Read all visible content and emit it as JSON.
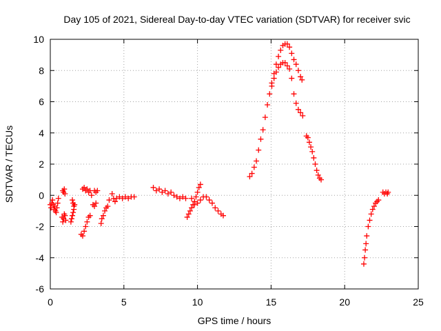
{
  "chart_data": {
    "type": "scatter",
    "title": "Day 105 of 2021, Sidereal Day-to-day VTEC variation (SDTVAR) for receiver svic",
    "xlabel": "GPS time / hours",
    "ylabel": "SDTVAR / TECUs",
    "xlim": [
      0,
      25
    ],
    "ylim": [
      -6,
      10
    ],
    "xticks": [
      0,
      5,
      10,
      15,
      20,
      25
    ],
    "yticks": [
      -6,
      -4,
      -2,
      0,
      2,
      4,
      6,
      8,
      10
    ],
    "grid": true,
    "marker": "+",
    "color": "#ff0000",
    "series": [
      {
        "name": "SDTVAR",
        "points": [
          [
            0.0,
            -0.6
          ],
          [
            0.05,
            -0.8
          ],
          [
            0.1,
            -0.5
          ],
          [
            0.15,
            -0.3
          ],
          [
            0.2,
            -0.6
          ],
          [
            0.25,
            -0.9
          ],
          [
            0.3,
            -0.7
          ],
          [
            0.35,
            -1.0
          ],
          [
            0.4,
            -1.1
          ],
          [
            0.45,
            -0.8
          ],
          [
            0.5,
            -0.5
          ],
          [
            0.55,
            -0.2
          ],
          [
            0.8,
            -1.4
          ],
          [
            0.85,
            -1.7
          ],
          [
            0.9,
            -1.5
          ],
          [
            0.95,
            -1.2
          ],
          [
            1.0,
            -1.3
          ],
          [
            1.05,
            -1.6
          ],
          [
            0.85,
            0.3
          ],
          [
            0.9,
            0.2
          ],
          [
            0.95,
            0.4
          ],
          [
            1.0,
            0.1
          ],
          [
            1.4,
            -1.7
          ],
          [
            1.45,
            -1.5
          ],
          [
            1.5,
            -1.3
          ],
          [
            1.55,
            -1.1
          ],
          [
            1.6,
            -0.9
          ],
          [
            1.5,
            -0.3
          ],
          [
            1.55,
            -0.5
          ],
          [
            1.6,
            -0.7
          ],
          [
            1.65,
            -0.6
          ],
          [
            2.1,
            -2.5
          ],
          [
            2.2,
            -2.6
          ],
          [
            2.3,
            -2.3
          ],
          [
            2.4,
            -2.0
          ],
          [
            2.5,
            -1.7
          ],
          [
            2.6,
            -1.4
          ],
          [
            2.7,
            -1.3
          ],
          [
            2.2,
            0.4
          ],
          [
            2.3,
            0.5
          ],
          [
            2.4,
            0.3
          ],
          [
            2.5,
            0.4
          ],
          [
            2.6,
            0.2
          ],
          [
            2.7,
            0.3
          ],
          [
            2.8,
            0.0
          ],
          [
            2.9,
            -0.6
          ],
          [
            3.0,
            -0.7
          ],
          [
            3.1,
            -0.5
          ],
          [
            3.0,
            0.3
          ],
          [
            3.1,
            0.2
          ],
          [
            3.2,
            0.3
          ],
          [
            3.45,
            -1.8
          ],
          [
            3.5,
            -1.5
          ],
          [
            3.6,
            -1.3
          ],
          [
            3.7,
            -1.0
          ],
          [
            3.8,
            -0.8
          ],
          [
            3.9,
            -0.7
          ],
          [
            4.0,
            -0.3
          ],
          [
            4.2,
            0.1
          ],
          [
            4.3,
            -0.2
          ],
          [
            4.4,
            -0.4
          ],
          [
            4.5,
            -0.2
          ],
          [
            4.7,
            -0.1
          ],
          [
            4.9,
            -0.2
          ],
          [
            5.1,
            -0.1
          ],
          [
            5.3,
            -0.2
          ],
          [
            5.5,
            -0.1
          ],
          [
            5.7,
            -0.1
          ],
          [
            7.0,
            0.5
          ],
          [
            7.2,
            0.3
          ],
          [
            7.4,
            0.4
          ],
          [
            7.6,
            0.2
          ],
          [
            7.8,
            0.3
          ],
          [
            8.0,
            0.1
          ],
          [
            8.2,
            0.2
          ],
          [
            8.4,
            0.0
          ],
          [
            8.6,
            -0.1
          ],
          [
            8.8,
            -0.2
          ],
          [
            9.0,
            -0.1
          ],
          [
            9.2,
            -0.2
          ],
          [
            9.3,
            -1.4
          ],
          [
            9.4,
            -1.2
          ],
          [
            9.5,
            -1.0
          ],
          [
            9.6,
            -0.8
          ],
          [
            9.7,
            -0.6
          ],
          [
            9.8,
            -0.4
          ],
          [
            9.9,
            -0.1
          ],
          [
            10.0,
            0.2
          ],
          [
            10.1,
            0.5
          ],
          [
            10.2,
            0.7
          ],
          [
            9.6,
            -0.2
          ],
          [
            9.8,
            -0.6
          ],
          [
            10.0,
            -0.5
          ],
          [
            10.2,
            -0.3
          ],
          [
            10.4,
            -0.1
          ],
          [
            10.6,
            -0.1
          ],
          [
            10.8,
            -0.3
          ],
          [
            11.0,
            -0.5
          ],
          [
            11.2,
            -0.8
          ],
          [
            11.4,
            -1.0
          ],
          [
            11.6,
            -1.2
          ],
          [
            11.75,
            -1.3
          ],
          [
            13.55,
            1.2
          ],
          [
            13.7,
            1.4
          ],
          [
            13.85,
            1.8
          ],
          [
            14.0,
            2.2
          ],
          [
            14.15,
            2.9
          ],
          [
            14.3,
            3.6
          ],
          [
            14.45,
            4.2
          ],
          [
            14.6,
            5.0
          ],
          [
            14.75,
            5.8
          ],
          [
            14.9,
            6.5
          ],
          [
            15.05,
            7.0
          ],
          [
            15.2,
            7.5
          ],
          [
            15.35,
            7.9
          ],
          [
            15.5,
            8.2
          ],
          [
            15.65,
            8.4
          ],
          [
            15.8,
            8.5
          ],
          [
            15.95,
            8.5
          ],
          [
            16.1,
            8.3
          ],
          [
            16.25,
            8.1
          ],
          [
            16.4,
            7.5
          ],
          [
            16.55,
            6.5
          ],
          [
            16.7,
            5.9
          ],
          [
            16.85,
            5.5
          ],
          [
            17.0,
            5.3
          ],
          [
            17.15,
            5.1
          ],
          [
            15.05,
            7.2
          ],
          [
            15.2,
            7.8
          ],
          [
            15.35,
            8.4
          ],
          [
            15.5,
            8.9
          ],
          [
            15.65,
            9.3
          ],
          [
            15.8,
            9.6
          ],
          [
            15.95,
            9.7
          ],
          [
            16.1,
            9.7
          ],
          [
            16.25,
            9.5
          ],
          [
            16.4,
            9.1
          ],
          [
            16.55,
            8.7
          ],
          [
            16.7,
            8.4
          ],
          [
            16.85,
            8.0
          ],
          [
            17.0,
            7.6
          ],
          [
            17.1,
            7.4
          ],
          [
            17.4,
            3.8
          ],
          [
            17.5,
            3.7
          ],
          [
            17.6,
            3.4
          ],
          [
            17.7,
            3.1
          ],
          [
            17.8,
            2.8
          ],
          [
            17.9,
            2.4
          ],
          [
            18.0,
            2.0
          ],
          [
            18.1,
            1.6
          ],
          [
            18.2,
            1.3
          ],
          [
            18.3,
            1.1
          ],
          [
            18.4,
            1.0
          ],
          [
            21.3,
            -4.4
          ],
          [
            21.35,
            -4.0
          ],
          [
            21.4,
            -3.5
          ],
          [
            21.45,
            -3.1
          ],
          [
            21.5,
            -2.6
          ],
          [
            21.6,
            -2.0
          ],
          [
            21.7,
            -1.6
          ],
          [
            21.8,
            -1.2
          ],
          [
            21.9,
            -0.9
          ],
          [
            22.0,
            -0.7
          ],
          [
            22.1,
            -0.5
          ],
          [
            22.2,
            -0.4
          ],
          [
            22.3,
            -0.3
          ],
          [
            22.6,
            0.2
          ],
          [
            22.7,
            0.1
          ],
          [
            22.8,
            0.2
          ],
          [
            22.9,
            0.1
          ],
          [
            22.95,
            0.2
          ]
        ]
      }
    ]
  }
}
